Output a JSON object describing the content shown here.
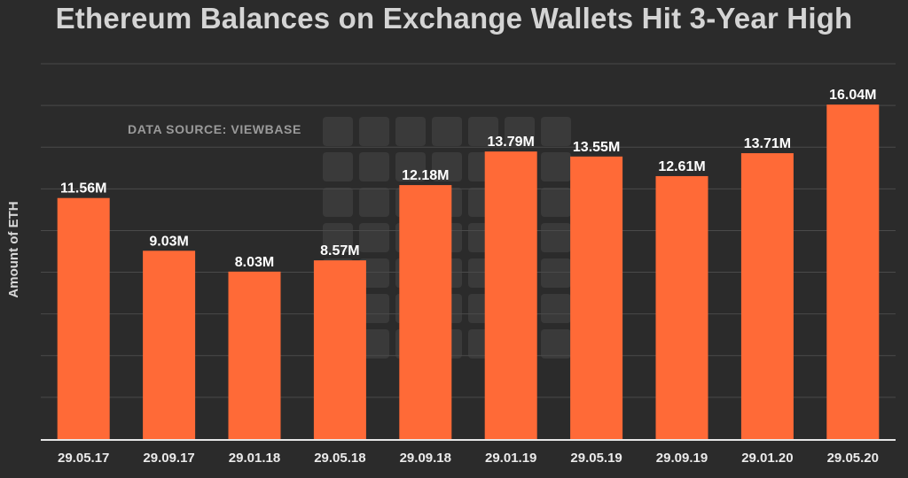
{
  "chart_data": {
    "type": "bar",
    "title": "Ethereum Balances on Exchange Wallets Hit 3-Year High",
    "ylabel": "Amount of ETH",
    "xlabel": "",
    "source_note": "DATA SOURCE: VIEWBASE",
    "categories": [
      "29.05.17",
      "29.09.17",
      "29.01.18",
      "29.05.18",
      "29.09.18",
      "29.01.19",
      "29.05.19",
      "29.09.19",
      "29.01.20",
      "29.05.20"
    ],
    "values": [
      11.56,
      9.03,
      8.03,
      8.57,
      12.18,
      13.79,
      13.55,
      12.61,
      13.71,
      16.04
    ],
    "data_labels": [
      "11.56M",
      "9.03M",
      "8.03M",
      "8.57M",
      "12.18M",
      "13.79M",
      "13.55M",
      "12.61M",
      "13.71M",
      "16.04M"
    ],
    "unit": "M",
    "ylim": [
      0,
      18
    ],
    "grid": true,
    "colors": {
      "bar": "#ff6a37",
      "background": "#2b2b2b",
      "text": "#ffffff"
    }
  }
}
